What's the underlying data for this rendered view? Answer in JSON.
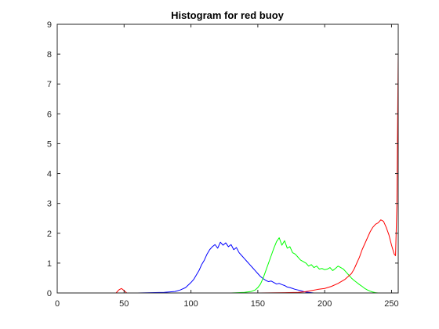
{
  "chart_data": {
    "type": "line",
    "title": "Histogram for red buoy",
    "xlabel": "",
    "ylabel": "",
    "xlim": [
      0,
      255
    ],
    "ylim": [
      0,
      9
    ],
    "x_ticks": [
      0,
      50,
      100,
      150,
      200,
      250
    ],
    "y_ticks": [
      0,
      1,
      2,
      3,
      4,
      5,
      6,
      7,
      8,
      9
    ],
    "grid": false,
    "legend": "none",
    "series": [
      {
        "color": "#0000ff",
        "x": [
          0,
          60,
          80,
          88,
          92,
          96,
          100,
          102,
          104,
          106,
          108,
          110,
          112,
          114,
          116,
          118,
          120,
          122,
          124,
          126,
          128,
          130,
          132,
          134,
          136,
          138,
          140,
          142,
          144,
          146,
          148,
          150,
          152,
          154,
          156,
          158,
          160,
          162,
          164,
          166,
          168,
          170,
          172,
          174,
          176,
          178,
          180,
          182,
          184,
          186,
          188,
          190,
          192,
          194,
          196,
          198,
          200,
          202,
          204,
          206,
          208,
          210,
          212,
          214,
          216,
          218,
          220,
          222,
          224,
          226,
          228,
          230,
          232,
          234,
          236,
          238,
          240,
          242,
          244,
          246,
          248,
          250,
          252,
          255
        ],
        "y": [
          0,
          0,
          0.02,
          0.05,
          0.1,
          0.18,
          0.35,
          0.45,
          0.6,
          0.75,
          0.95,
          1.1,
          1.3,
          1.45,
          1.55,
          1.62,
          1.5,
          1.7,
          1.6,
          1.68,
          1.55,
          1.62,
          1.45,
          1.52,
          1.35,
          1.25,
          1.15,
          1.05,
          0.95,
          0.85,
          0.75,
          0.65,
          0.55,
          0.48,
          0.42,
          0.38,
          0.4,
          0.35,
          0.3,
          0.32,
          0.28,
          0.25,
          0.2,
          0.18,
          0.15,
          0.12,
          0.1,
          0.08,
          0.05,
          0.03,
          0.02,
          0.01,
          0,
          0,
          0,
          0,
          0,
          0,
          0,
          0,
          0,
          0,
          0,
          0,
          0,
          0,
          0,
          0,
          0,
          0,
          0,
          0,
          0,
          0,
          0,
          0,
          0,
          0,
          0,
          0,
          0,
          0,
          0,
          0
        ]
      },
      {
        "color": "#00ff00",
        "x": [
          0,
          130,
          140,
          145,
          148,
          150,
          152,
          154,
          156,
          158,
          160,
          162,
          164,
          166,
          168,
          170,
          172,
          174,
          176,
          178,
          180,
          182,
          184,
          186,
          188,
          190,
          192,
          194,
          196,
          198,
          200,
          202,
          204,
          206,
          208,
          210,
          212,
          214,
          216,
          218,
          220,
          222,
          224,
          226,
          228,
          230,
          232,
          234,
          236,
          238,
          240,
          242,
          244,
          246,
          248,
          250,
          252,
          255
        ],
        "y": [
          0,
          0,
          0.02,
          0.05,
          0.1,
          0.18,
          0.3,
          0.5,
          0.75,
          1.0,
          1.25,
          1.5,
          1.72,
          1.85,
          1.6,
          1.75,
          1.5,
          1.55,
          1.35,
          1.3,
          1.2,
          1.1,
          1.05,
          1.0,
          0.9,
          0.95,
          0.85,
          0.9,
          0.8,
          0.82,
          0.78,
          0.8,
          0.85,
          0.75,
          0.82,
          0.9,
          0.85,
          0.8,
          0.7,
          0.6,
          0.5,
          0.42,
          0.35,
          0.28,
          0.22,
          0.15,
          0.1,
          0.06,
          0.03,
          0.01,
          0,
          0,
          0,
          0,
          0,
          0,
          0,
          0
        ]
      },
      {
        "color": "#ff0000",
        "x": [
          0,
          44,
          46,
          48,
          50,
          52,
          60,
          80,
          150,
          170,
          180,
          185,
          190,
          195,
          200,
          205,
          210,
          215,
          220,
          222,
          224,
          226,
          228,
          230,
          232,
          234,
          236,
          238,
          240,
          242,
          244,
          246,
          248,
          250,
          251,
          252,
          253,
          254,
          255
        ],
        "y": [
          0,
          0,
          0.1,
          0.15,
          0.08,
          0,
          0,
          0,
          0,
          0.01,
          0.02,
          0.04,
          0.08,
          0.12,
          0.15,
          0.22,
          0.32,
          0.45,
          0.65,
          0.8,
          1.0,
          1.2,
          1.45,
          1.65,
          1.85,
          2.05,
          2.2,
          2.3,
          2.35,
          2.45,
          2.4,
          2.2,
          1.95,
          1.6,
          1.45,
          1.3,
          1.25,
          3.0,
          8.1
        ]
      },
      {
        "color": "#ff00ff",
        "x": [
          0,
          255
        ],
        "y": [
          0,
          0
        ]
      }
    ]
  }
}
